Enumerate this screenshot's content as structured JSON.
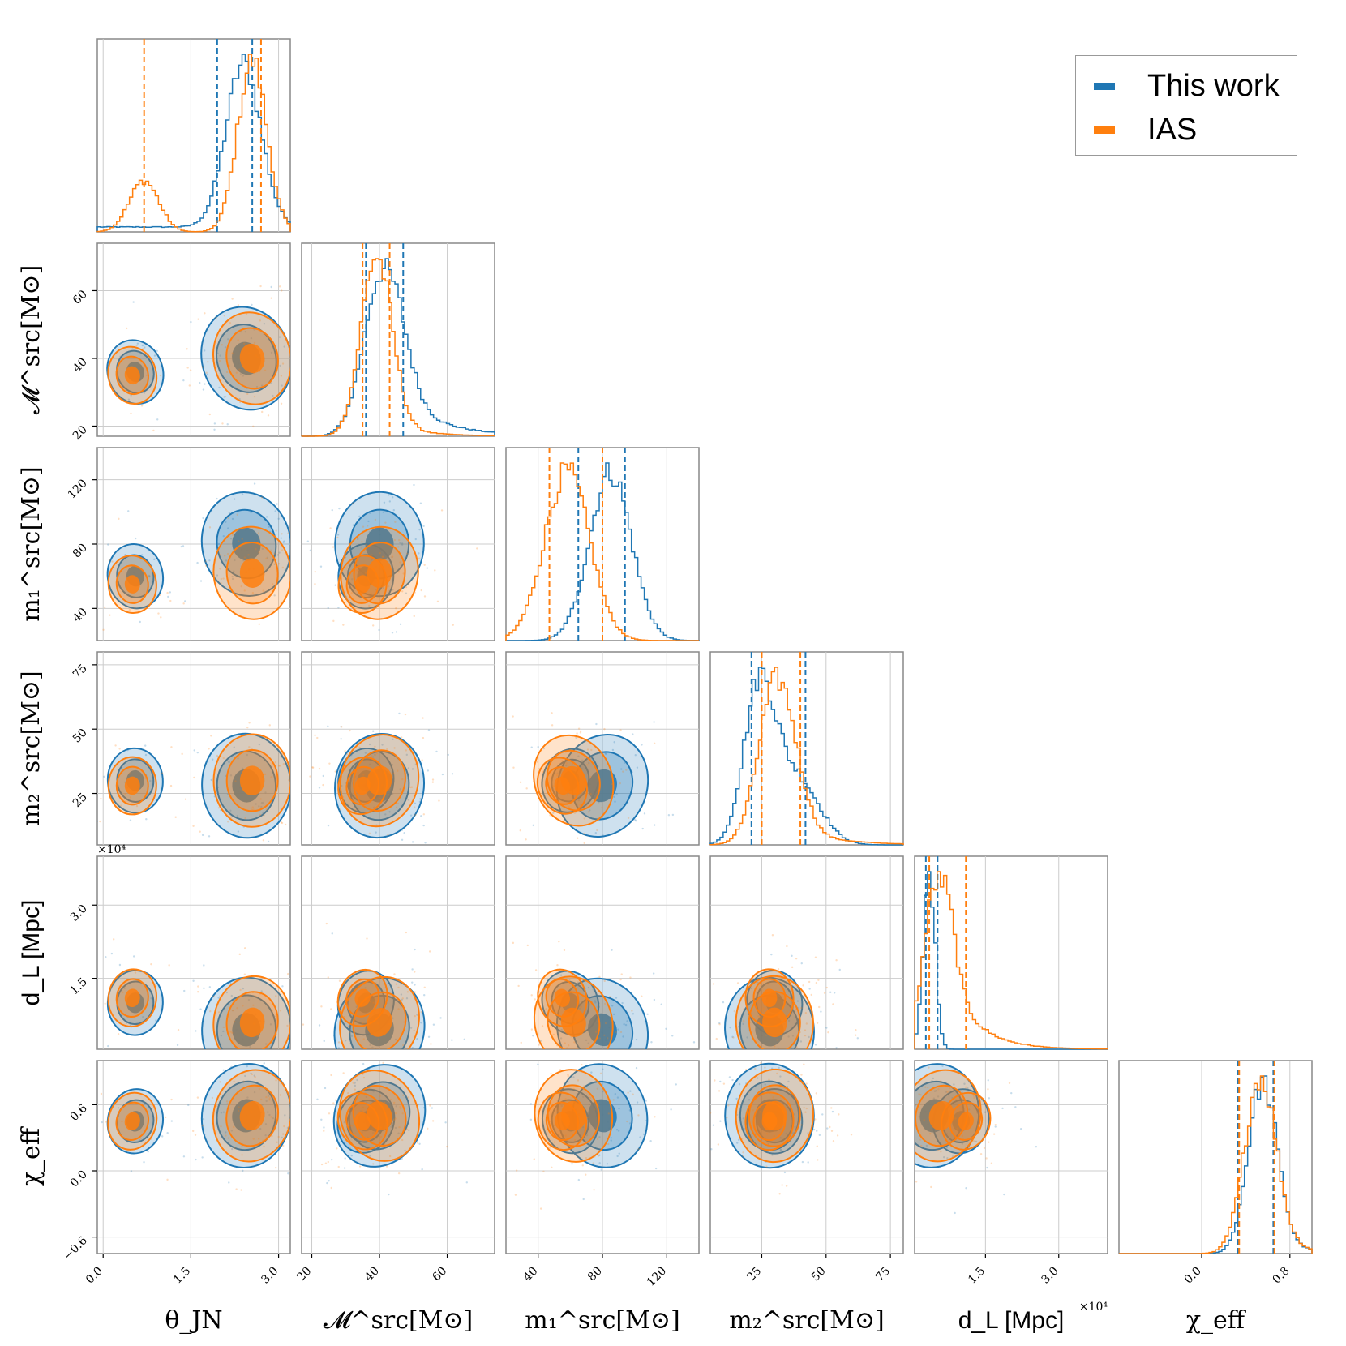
{
  "chart_data": {
    "type": "corner",
    "series": [
      {
        "name": "This work",
        "color": "#1f77b4"
      },
      {
        "name": "IAS",
        "color": "#ff7f0e"
      }
    ],
    "parameters": [
      {
        "key": "theta_jn",
        "label": "θ_JN",
        "range": [
          -0.1,
          3.2
        ],
        "ticks": [
          0.0,
          1.5,
          3.0
        ],
        "tick_labels": [
          "0.0",
          "1.5",
          "3.0"
        ]
      },
      {
        "key": "mchirp",
        "label": "𝓜^src[M⊙]",
        "range": [
          17,
          74
        ],
        "ticks": [
          20,
          40,
          60
        ],
        "tick_labels": [
          "20",
          "40",
          "60"
        ]
      },
      {
        "key": "m1",
        "label": "m₁^src[M⊙]",
        "range": [
          20,
          140
        ],
        "ticks": [
          40,
          80,
          120
        ],
        "tick_labels": [
          "40",
          "80",
          "120"
        ]
      },
      {
        "key": "m2",
        "label": "m₂^src[M⊙]",
        "range": [
          5,
          80
        ],
        "ticks": [
          25,
          50,
          75
        ],
        "tick_labels": [
          "25",
          "50",
          "75"
        ]
      },
      {
        "key": "dL",
        "label": "d_L [Mpc]",
        "range": [
          500,
          40000
        ],
        "ticks": [
          15000,
          30000
        ],
        "tick_labels": [
          "1.5",
          "3.0"
        ],
        "sci": "×10⁴"
      },
      {
        "key": "chi_eff",
        "label": "χ_eff",
        "range": [
          -0.75,
          1.0
        ],
        "ticks": [
          -0.6,
          0.0,
          0.6
        ],
        "tick_labels": [
          "−0.6",
          "0.0",
          "0.6"
        ],
        "diag_ticks": [
          0.0,
          0.8
        ],
        "diag_tick_labels": [
          "0.0",
          "0.8"
        ]
      }
    ],
    "marginals": {
      "theta_jn": {
        "This work": {
          "modes": [
            [
              2.4,
              0.3,
              1.0
            ]
          ],
          "floor": 0.03,
          "quantiles": [
            1.95,
            2.55
          ]
        },
        "IAS": {
          "modes": [
            [
              0.7,
              0.25,
              0.3
            ],
            [
              2.55,
              0.25,
              1.0
            ]
          ],
          "floor": 0.0,
          "quantiles": [
            0.7,
            2.7
          ]
        }
      },
      "mchirp": {
        "This work": {
          "modes": [
            [
              41,
              5.5,
              1.0
            ]
          ],
          "tail": 0.35,
          "quantiles": [
            36,
            47
          ]
        },
        "IAS": {
          "modes": [
            [
              39,
              4.5,
              1.0
            ]
          ],
          "tail": 0.1,
          "quantiles": [
            35,
            43
          ]
        }
      },
      "m1": {
        "This work": {
          "modes": [
            [
              85,
              13,
              1.0
            ]
          ],
          "quantiles": [
            65,
            94
          ]
        },
        "IAS": {
          "modes": [
            [
              58,
              14,
              1.0
            ]
          ],
          "quantiles": [
            47,
            80
          ]
        }
      },
      "m2": {
        "This work": {
          "modes": [
            [
              24,
              6,
              1.0
            ],
            [
              38,
              9,
              0.45
            ]
          ],
          "quantiles": [
            21,
            42
          ]
        },
        "IAS": {
          "modes": [
            [
              31,
              7,
              1.0
            ]
          ],
          "tail": 0.15,
          "quantiles": [
            25,
            40
          ]
        }
      },
      "dL": {
        "This work": {
          "modes": [
            [
              3500,
              1200,
              1.0
            ]
          ],
          "quantiles": [
            2800,
            5200
          ]
        },
        "IAS": {
          "modes": [
            [
              5000,
              2600,
              0.45
            ]
          ],
          "tail": 0.3,
          "quantiles": [
            3500,
            11000
          ]
        }
      },
      "chi_eff": {
        "This work": {
          "modes": [
            [
              0.55,
              0.13,
              1.0
            ]
          ],
          "tail": 0.1,
          "quantiles": [
            0.33,
            0.65
          ]
        },
        "IAS": {
          "modes": [
            [
              0.53,
              0.14,
              1.0
            ]
          ],
          "tail": 0.1,
          "quantiles": [
            0.34,
            0.66
          ]
        }
      }
    },
    "joint_modes": {
      "This work": [
        {
          "theta_jn": 2.45,
          "mchirp": 40,
          "m1": 80,
          "m2": 28,
          "dL": 4500,
          "chi_eff": 0.5
        },
        {
          "theta_jn": 0.55,
          "mchirp": 36,
          "m1": 60,
          "m2": 30,
          "dL": 10000,
          "chi_eff": 0.45
        }
      ],
      "IAS": [
        {
          "theta_jn": 2.55,
          "mchirp": 40,
          "m1": 62,
          "m2": 30,
          "dL": 6000,
          "chi_eff": 0.5
        },
        {
          "theta_jn": 0.5,
          "mchirp": 35,
          "m1": 55,
          "m2": 28,
          "dL": 11000,
          "chi_eff": 0.45
        }
      ]
    },
    "grid": true
  },
  "legend": {
    "items": [
      {
        "label": "This work",
        "color": "#1f77b4"
      },
      {
        "label": "IAS",
        "color": "#ff7f0e"
      }
    ]
  }
}
